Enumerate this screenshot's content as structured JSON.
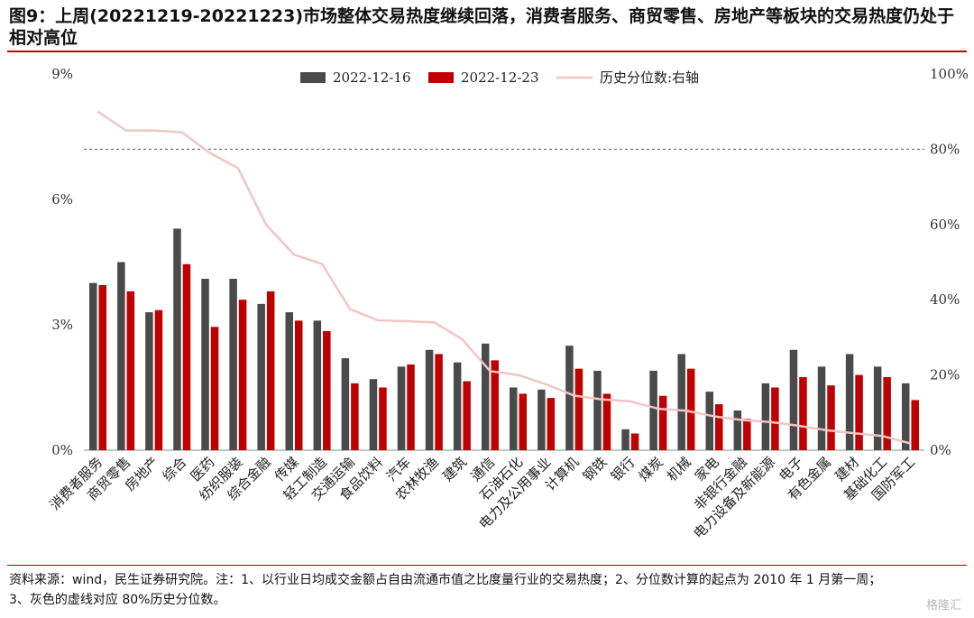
{
  "title": "图9：上周(20221219-20221223)市场整体交易热度继续回落，消费者服务、商贸零售、房地产等板块的交易热度仍处于相对高位",
  "note_lines": [
    "资料来源：wind，民生证券研究院。注：1、以行业日均成交金额占自由流通市值之比度量行业的交易热度；2、分位数计算的起点为 2010 年 1 月第一周；",
    "3、灰色的虚线对应 80%历史分位数。"
  ],
  "watermark": "格隆汇",
  "colors": {
    "series1": "#4a4a4a",
    "series2": "#c00000",
    "series3": "#f2c4c4",
    "reference": "#555555"
  },
  "chart_data": {
    "type": "bar",
    "categories": [
      "消费者服务",
      "商贸零售",
      "房地产",
      "综合",
      "医药",
      "纺织服装",
      "综合金融",
      "传媒",
      "轻工制造",
      "交通运输",
      "食品饮料",
      "汽车",
      "农林牧渔",
      "建筑",
      "通信",
      "石油石化",
      "电力及公用事业",
      "计算机",
      "钢铁",
      "银行",
      "煤炭",
      "机械",
      "家电",
      "非银行金融",
      "电力设备及新能源",
      "电子",
      "有色金属",
      "建材",
      "基础化工",
      "国防军工"
    ],
    "series": [
      {
        "name": "2022-12-16",
        "type": "bar",
        "axis": "left",
        "values": [
          4.0,
          4.5,
          3.3,
          5.3,
          4.1,
          4.1,
          3.5,
          3.3,
          3.1,
          2.2,
          1.7,
          2.0,
          2.4,
          2.1,
          2.55,
          1.5,
          1.45,
          2.5,
          1.9,
          0.5,
          1.9,
          2.3,
          1.4,
          0.95,
          1.6,
          2.4,
          2.0,
          2.3,
          2.0,
          1.6
        ]
      },
      {
        "name": "2022-12-23",
        "type": "bar",
        "axis": "left",
        "values": [
          3.95,
          3.8,
          3.35,
          4.45,
          2.95,
          3.6,
          3.8,
          3.1,
          2.85,
          1.6,
          1.5,
          2.05,
          2.3,
          1.65,
          2.15,
          1.35,
          1.25,
          1.95,
          1.35,
          0.4,
          1.3,
          1.95,
          1.1,
          0.75,
          1.5,
          1.75,
          1.55,
          1.8,
          1.75,
          1.2
        ]
      },
      {
        "name": "历史分位数:右轴",
        "type": "line",
        "axis": "right",
        "values": [
          90,
          85,
          85,
          84.5,
          79,
          75,
          60,
          52,
          49.5,
          37.5,
          34.5,
          34.3,
          34,
          29.5,
          21,
          20,
          17.5,
          14.5,
          13.5,
          13,
          11,
          10.5,
          9,
          8,
          7.5,
          6.5,
          5.3,
          4.5,
          3.8,
          1.8
        ]
      }
    ],
    "y_left": {
      "min": 0,
      "max": 9,
      "ticks": [
        0,
        3,
        6,
        9
      ],
      "tick_labels": [
        "0%",
        "3%",
        "6%",
        "9%"
      ]
    },
    "y_right": {
      "min": 0,
      "max": 100,
      "ticks": [
        0,
        20,
        40,
        60,
        80,
        100
      ],
      "tick_labels": [
        "0%",
        "20%",
        "40%",
        "60%",
        "80%",
        "100%"
      ]
    },
    "reference_line": {
      "axis": "right",
      "value": 80
    },
    "legend": {
      "position": "top-center"
    },
    "grid": false
  }
}
